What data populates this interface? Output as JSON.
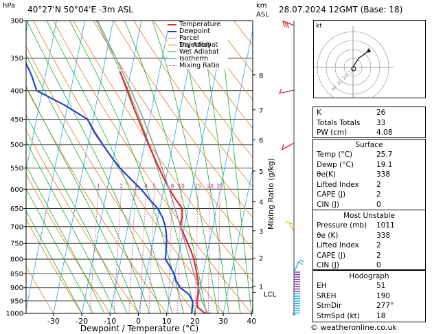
{
  "header": {
    "location": "40°27'N  50°04'E  -3m  ASL",
    "datetime": "28.07.2024  12GMT  (Base: 18)",
    "unit_hpa": "hPa",
    "unit_km": "km",
    "unit_asl": "ASL"
  },
  "footer": {
    "credit": "© weatheronline.co.uk"
  },
  "chart_data": {
    "type": "skew-t",
    "xlabel": "Dewpoint / Temperature (°C)",
    "right_axis_label": "Mixing Ratio (g/kg)",
    "x_ticks": [
      -30,
      -20,
      -10,
      0,
      10,
      20,
      30,
      40
    ],
    "xlim": [
      -35,
      40
    ],
    "pressure_levels": [
      300,
      350,
      400,
      450,
      500,
      550,
      600,
      650,
      700,
      750,
      800,
      850,
      900,
      950,
      1000
    ],
    "km_labels": [
      {
        "p": 375,
        "label": "8"
      },
      {
        "p": 433,
        "label": "7"
      },
      {
        "p": 490,
        "label": "6"
      },
      {
        "p": 557,
        "label": "5"
      },
      {
        "p": 632,
        "label": "4"
      },
      {
        "p": 712,
        "label": "3"
      },
      {
        "p": 797,
        "label": "2"
      },
      {
        "p": 894,
        "label": "1"
      },
      {
        "p": 917,
        "label": "LCL"
      }
    ],
    "mixing_ratio_labels": [
      "1",
      "2",
      "3",
      "4",
      "5",
      "8",
      "10",
      "15",
      "20",
      "25"
    ],
    "legend": [
      {
        "name": "Temperature",
        "color": "#e8202a"
      },
      {
        "name": "Dewpoint",
        "color": "#1c3fd8"
      },
      {
        "name": "Parcel Trajectory",
        "color": "#9a9a9a"
      },
      {
        "name": "Dry Adiabat",
        "color": "#e8741a"
      },
      {
        "name": "Wet Adiabat",
        "color": "#1aa82a"
      },
      {
        "name": "Isotherm",
        "color": "#1aa8e0"
      },
      {
        "name": "Mixing Ratio",
        "color": "#c0207c"
      }
    ],
    "series": [
      {
        "name": "Temperature",
        "color": "#e8202a",
        "points": [
          [
            1011,
            25.7
          ],
          [
            1000,
            23.5
          ],
          [
            975,
            20.5
          ],
          [
            950,
            19.8
          ],
          [
            925,
            19.7
          ],
          [
            900,
            19.3
          ],
          [
            875,
            18.8
          ],
          [
            850,
            17.8
          ],
          [
            825,
            16.8
          ],
          [
            800,
            15.7
          ],
          [
            775,
            14.2
          ],
          [
            750,
            12.4
          ],
          [
            725,
            10.6
          ],
          [
            700,
            8.6
          ],
          [
            675,
            8.6
          ],
          [
            650,
            7.9
          ],
          [
            625,
            4.9
          ],
          [
            600,
            2.0
          ],
          [
            575,
            -0.6
          ],
          [
            550,
            -3.2
          ],
          [
            525,
            -5.8
          ],
          [
            500,
            -8.5
          ],
          [
            475,
            -11.2
          ],
          [
            450,
            -14.0
          ],
          [
            425,
            -17.0
          ],
          [
            400,
            -20.0
          ],
          [
            375,
            -23.2
          ],
          [
            370,
            -24.0
          ]
        ]
      },
      {
        "name": "Dewpoint",
        "color": "#1c3fd8",
        "points": [
          [
            1011,
            19.1
          ],
          [
            1000,
            18.8
          ],
          [
            975,
            18.6
          ],
          [
            950,
            18.3
          ],
          [
            925,
            16.5
          ],
          [
            900,
            13.0
          ],
          [
            875,
            11.0
          ],
          [
            850,
            9.8
          ],
          [
            825,
            7.8
          ],
          [
            800,
            5.6
          ],
          [
            775,
            5.3
          ],
          [
            750,
            4.9
          ],
          [
            725,
            4.3
          ],
          [
            700,
            3.3
          ],
          [
            675,
            1.7
          ],
          [
            650,
            -0.7
          ],
          [
            625,
            -4.4
          ],
          [
            600,
            -8.0
          ],
          [
            575,
            -12.5
          ],
          [
            550,
            -17.0
          ],
          [
            525,
            -20.9
          ],
          [
            500,
            -24.7
          ],
          [
            475,
            -28.6
          ],
          [
            450,
            -32.0
          ],
          [
            425,
            -41.0
          ],
          [
            400,
            -52.0
          ],
          [
            375,
            -55.0
          ],
          [
            350,
            -59.0
          ],
          [
            325,
            -62.0
          ],
          [
            300,
            -66.0
          ]
        ]
      },
      {
        "name": "Parcel Trajectory",
        "color": "#9a9a9a",
        "points": [
          [
            1011,
            25.7
          ],
          [
            1000,
            24.5
          ],
          [
            950,
            21.5
          ],
          [
            917,
            20.2
          ],
          [
            900,
            19.3
          ],
          [
            850,
            16.8
          ],
          [
            800,
            14.2
          ],
          [
            750,
            11.5
          ],
          [
            700,
            8.6
          ],
          [
            650,
            5.4
          ],
          [
            600,
            1.9
          ],
          [
            550,
            -2.1
          ],
          [
            500,
            -6.8
          ],
          [
            450,
            -12.2
          ],
          [
            400,
            -18.6
          ],
          [
            350,
            -26.3
          ],
          [
            300,
            -35.5
          ]
        ]
      }
    ],
    "wind_hodograph_label": "kt",
    "hodograph_ring_labels": [
      "10",
      "20",
      "30",
      "40"
    ]
  },
  "indices": [
    {
      "key": "K",
      "value": "26"
    },
    {
      "key": "Totals Totals",
      "value": "33"
    },
    {
      "key": "PW (cm)",
      "value": "4.08"
    }
  ],
  "surface": {
    "title": "Surface",
    "rows": [
      {
        "key": "Temp (°C)",
        "value": "25.7"
      },
      {
        "key": "Dewp (°C)",
        "value": "19.1"
      },
      {
        "key": "θe(K)",
        "value": "338"
      },
      {
        "key": "Lifted Index",
        "value": "2"
      },
      {
        "key": "CAPE (J)",
        "value": "2"
      },
      {
        "key": "CIN (J)",
        "value": "0"
      }
    ]
  },
  "most_unstable": {
    "title": "Most Unstable",
    "rows": [
      {
        "key": "Pressure (mb)",
        "value": "1011"
      },
      {
        "key": "θe (K)",
        "value": "338"
      },
      {
        "key": "Lifted Index",
        "value": "2"
      },
      {
        "key": "CAPE (J)",
        "value": "2"
      },
      {
        "key": "CIN (J)",
        "value": "0"
      }
    ]
  },
  "hodograph": {
    "title": "Hodograph",
    "rows": [
      {
        "key": "EH",
        "value": "51"
      },
      {
        "key": "SREH",
        "value": "190"
      },
      {
        "key": "StmDir",
        "value": "277°"
      },
      {
        "key": "StmSpd (kt)",
        "value": "18"
      }
    ]
  }
}
